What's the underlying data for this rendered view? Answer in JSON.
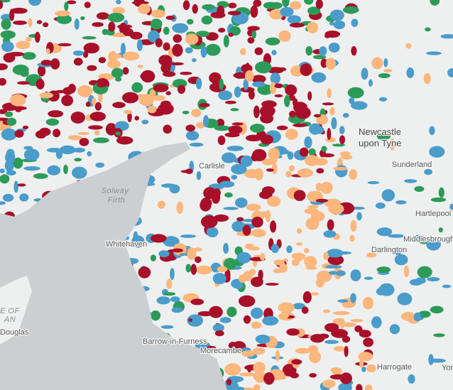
{
  "places": [
    {
      "label": [
        "Newcastle",
        "upon Tyne"
      ]
    },
    {
      "label": [
        "Sunderland"
      ]
    },
    {
      "label": [
        "Carlisle"
      ]
    },
    {
      "label": [
        "Hartlepool"
      ]
    },
    {
      "label": [
        "Middlesbrough"
      ]
    },
    {
      "label": [
        "Darlington"
      ]
    },
    {
      "label": [
        "Whitehaven"
      ]
    },
    {
      "label": [
        "Barrow-in-Furness"
      ]
    },
    {
      "label": [
        "Morecambe"
      ]
    },
    {
      "label": [
        "Harrogate"
      ]
    },
    {
      "label": [
        "Yor"
      ]
    },
    {
      "label": [
        "Douglas"
      ]
    },
    {
      "label": [
        "E OF",
        "AN"
      ]
    }
  ],
  "water": [
    {
      "label": [
        "Solway",
        "Firth"
      ]
    }
  ]
}
